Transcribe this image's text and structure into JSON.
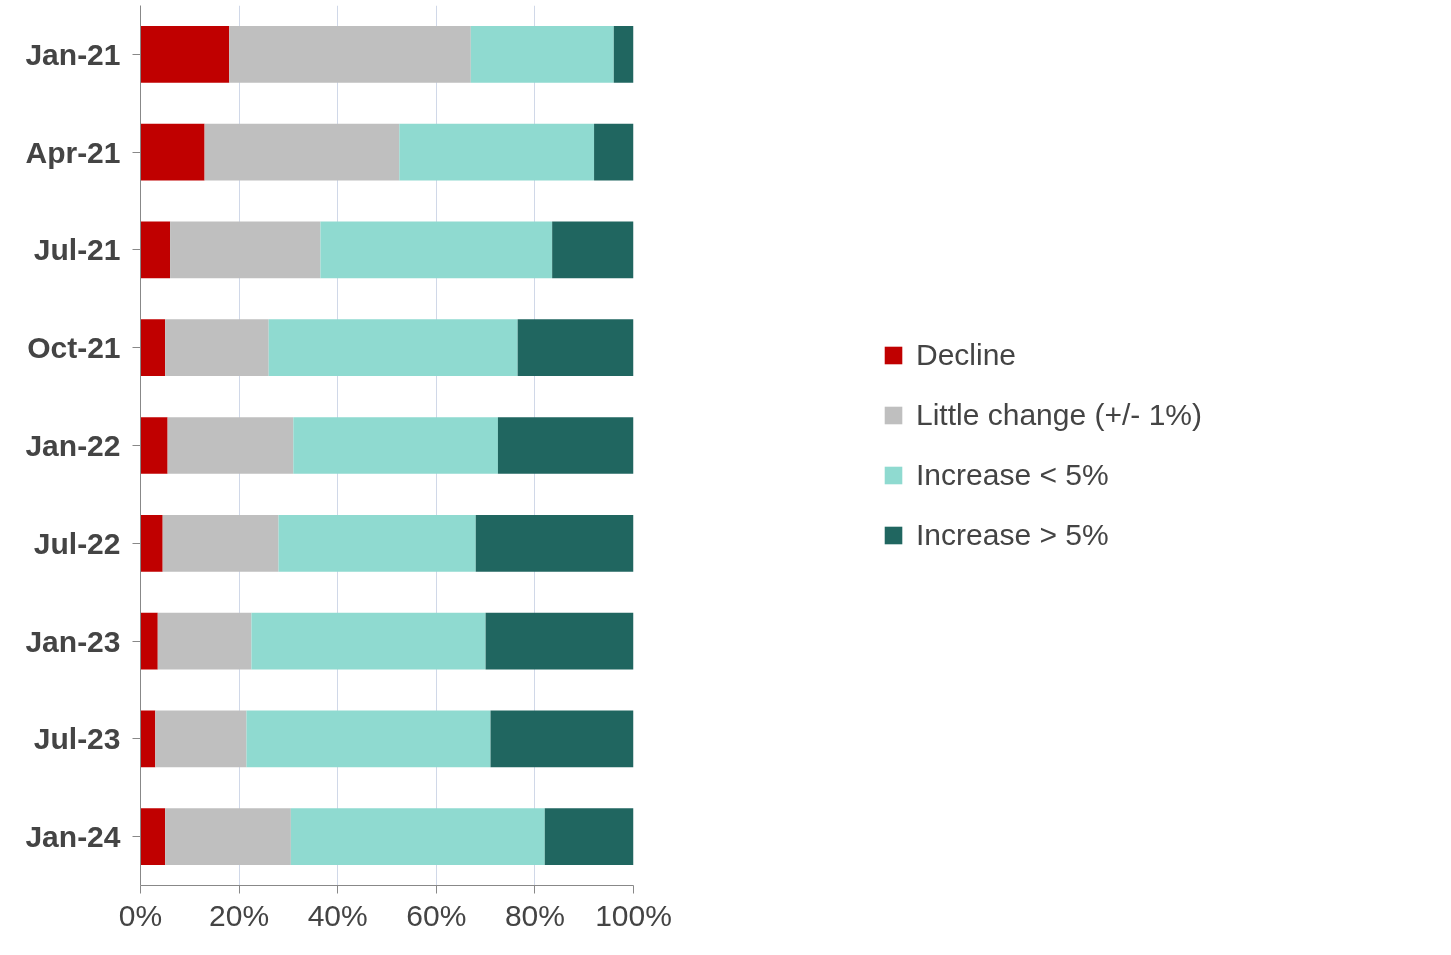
{
  "chart_data": {
    "type": "bar",
    "orientation": "horizontal",
    "stacked": true,
    "categories": [
      "Jan-21",
      "Apr-21",
      "Jul-21",
      "Oct-21",
      "Jan-22",
      "Jul-22",
      "Jan-23",
      "Jul-23",
      "Jan-24"
    ],
    "series": [
      {
        "name": "Decline",
        "color": "#c00000",
        "values": [
          18,
          13,
          6,
          5,
          5.5,
          4.5,
          3.5,
          3,
          5
        ]
      },
      {
        "name": "Little change (+/- 1%)",
        "color": "#bfbfbf",
        "values": [
          49,
          39.5,
          30.5,
          21,
          25.5,
          23.5,
          19,
          18.5,
          25.5
        ]
      },
      {
        "name": "Increase < 5%",
        "color": "#8fdad0",
        "values": [
          29,
          39.5,
          47,
          50.5,
          41.5,
          40,
          47.5,
          49.5,
          51.5
        ]
      },
      {
        "name": "Increase > 5%",
        "color": "#206660",
        "values": [
          4,
          8,
          16.5,
          23.5,
          27.5,
          32,
          30,
          29,
          18
        ]
      }
    ],
    "xlim": [
      0,
      100
    ],
    "xticks": [
      {
        "value": 0,
        "label": "0%"
      },
      {
        "value": 20,
        "label": "20%"
      },
      {
        "value": 40,
        "label": "40%"
      },
      {
        "value": 60,
        "label": "60%"
      },
      {
        "value": 80,
        "label": "80%"
      },
      {
        "value": 100,
        "label": "100%"
      }
    ],
    "grid": "x",
    "legend": "right"
  }
}
